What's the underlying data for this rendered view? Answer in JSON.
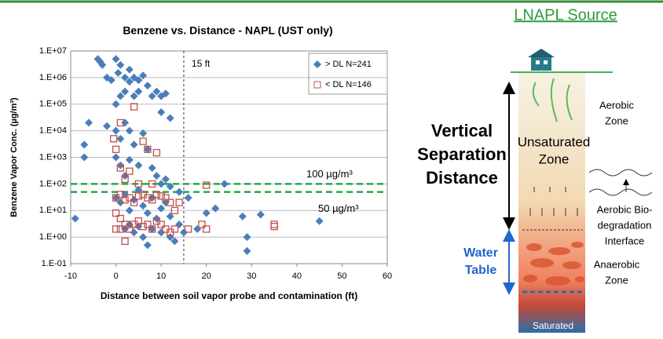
{
  "chart_data": {
    "type": "scatter",
    "title": "Benzene vs. Distance - NAPL (UST only)",
    "x_label": "Distance between soil vapor probe and contamination (ft)",
    "y_label": "Benzene Vapor Conc. (µg/m³)",
    "xlim": [
      -10,
      60
    ],
    "xticks": [
      -10,
      0,
      10,
      20,
      30,
      40,
      50,
      60
    ],
    "ylim": [
      0.1,
      10000000
    ],
    "yscale": "log",
    "yticks": [
      {
        "value": 0.1,
        "label": "1.E-01"
      },
      {
        "value": 1,
        "label": "1.E+00"
      },
      {
        "value": 10,
        "label": "1.E+01"
      },
      {
        "value": 100,
        "label": "1.E+02"
      },
      {
        "value": 1000,
        "label": "1.E+03"
      },
      {
        "value": 10000,
        "label": "1.E+04"
      },
      {
        "value": 100000,
        "label": "1.E+05"
      },
      {
        "value": 1000000,
        "label": "1.E+06"
      },
      {
        "value": 10000000,
        "label": "1.E+07"
      }
    ],
    "grid": true,
    "legend": "upper right",
    "reference_lines": [
      {
        "axis": "x",
        "value": 15,
        "label": "15 ft",
        "color": "#555555"
      },
      {
        "axis": "y",
        "value": 100,
        "label": "100 µg/m³",
        "color": "#22aa44"
      },
      {
        "axis": "y",
        "value": 50,
        "label": "50 µg/m³",
        "color": "#22aa44"
      }
    ],
    "series": [
      {
        "name": "> DL  N=241",
        "color": "#4a7ebb",
        "marker": "diamond",
        "x": [
          -4,
          -3.5,
          -3,
          0,
          1,
          -2,
          -1,
          0.5,
          2,
          3,
          4,
          5,
          6,
          7,
          3,
          1,
          2,
          0,
          4,
          5,
          8,
          9,
          10,
          11,
          -6,
          -7,
          -7,
          -2,
          0,
          1,
          2,
          3,
          4,
          6,
          7,
          10,
          12,
          0,
          1,
          2,
          3,
          5,
          8,
          9,
          10,
          11,
          12,
          14,
          0,
          1,
          2,
          3,
          4,
          5,
          6,
          7,
          8,
          9,
          10,
          11,
          12,
          14,
          16,
          20,
          22,
          24,
          28,
          32,
          2,
          3,
          4,
          5,
          6,
          7,
          8,
          10,
          12,
          13,
          29,
          29,
          45,
          -9,
          15,
          18
        ],
        "values": [
          5000000,
          4000000,
          3000000,
          5000000,
          3000000,
          1000000,
          800000,
          1500000,
          1000000,
          700000,
          1000000,
          800000,
          1200000,
          500000,
          2000000,
          200000,
          300000,
          100000,
          200000,
          300000,
          200000,
          300000,
          200000,
          250000,
          20000,
          3000,
          1000,
          15000,
          10000,
          5000,
          20000,
          10000,
          3000,
          8000,
          2000,
          50000,
          30000,
          1000,
          500,
          200,
          800,
          500,
          400,
          200,
          100,
          150,
          80,
          50,
          30,
          20,
          40,
          10,
          25,
          60,
          15,
          8,
          30,
          5,
          12,
          20,
          6,
          3,
          30,
          8,
          12,
          100,
          6,
          7,
          2,
          3,
          1.5,
          2.5,
          1,
          0.5,
          2,
          1.5,
          1,
          0.7,
          1,
          0.3,
          4,
          5,
          1.5,
          2
        ]
      },
      {
        "name": "< DL  N=146",
        "color": "#c0504d",
        "marker": "square-open",
        "x": [
          -0.5,
          0,
          1,
          2,
          3,
          6,
          7,
          9,
          4,
          1,
          0,
          1,
          2,
          3,
          4,
          5,
          6,
          7,
          8,
          9,
          10,
          11,
          12,
          13,
          14,
          0,
          1,
          2,
          3,
          4,
          5,
          6,
          7,
          8,
          9,
          10,
          11,
          12,
          2,
          5,
          8,
          13,
          16,
          20,
          19,
          20,
          35,
          35,
          0,
          1
        ],
        "values": [
          5000,
          2000,
          400,
          150,
          300,
          4000,
          2000,
          1500,
          80000,
          20000,
          30,
          40,
          25,
          30,
          20,
          35,
          40,
          30,
          25,
          40,
          35,
          30,
          20,
          10,
          20,
          8,
          5,
          3,
          2,
          3,
          4,
          2.5,
          3,
          2,
          4,
          3,
          2,
          1.5,
          0.7,
          100,
          100,
          2,
          2,
          90,
          3,
          2,
          3,
          2.5,
          2,
          2
        ]
      }
    ]
  },
  "diagram": {
    "title": "LNAPL Source",
    "separation": [
      "Vertical",
      "Separation",
      "Distance"
    ],
    "unsaturated": [
      "Unsaturated",
      "Zone"
    ],
    "aerobic": [
      "Aerobic",
      "Zone"
    ],
    "interface": [
      "Aerobic Bio-",
      "degradation",
      "Interface"
    ],
    "water_table": [
      "Water",
      "Table"
    ],
    "anaerobic": [
      "Anaerobic",
      "Zone"
    ],
    "saturated": "Saturated"
  }
}
